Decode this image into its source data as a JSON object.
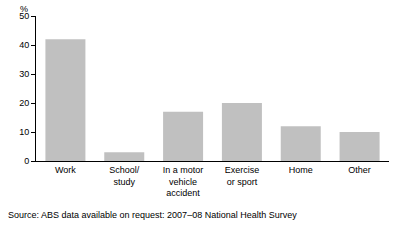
{
  "chart_data": {
    "type": "bar",
    "categories": [
      "Work",
      "School/ study",
      "In a motor vehicle accident",
      "Exercise or sport",
      "Home",
      "Other"
    ],
    "values": [
      42,
      3,
      17,
      20,
      12,
      10
    ],
    "color": "#c0c0c0",
    "ylabel": "%",
    "ylim": [
      0,
      50
    ],
    "yticks": [
      0,
      10,
      20,
      30,
      40,
      50
    ],
    "grid": true,
    "source": "Source: ABS data available on request: 2007–08 National Health Survey"
  }
}
